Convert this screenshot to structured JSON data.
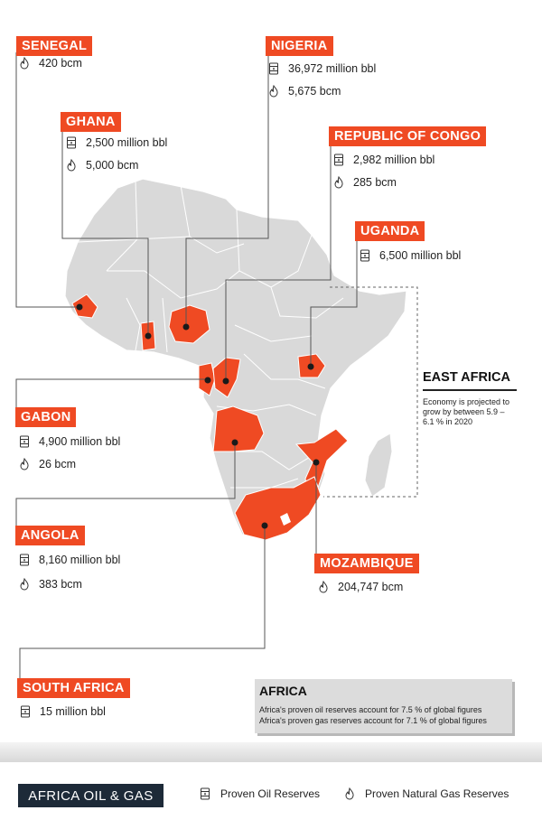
{
  "legend": {
    "brand": "AFRICA OIL & GAS",
    "oil_label": "Proven Oil Reserves",
    "gas_label": "Proven Natural Gas Reserves"
  },
  "countries": {
    "senegal": {
      "name": "SENEGAL",
      "gas": "420 bcm"
    },
    "nigeria": {
      "name": "NIGERIA",
      "oil": "36,972 million bbl",
      "gas": "5,675 bcm"
    },
    "ghana": {
      "name": "GHANA",
      "oil": "2,500 million bbl",
      "gas": "5,000 bcm"
    },
    "congo": {
      "name": "REPUBLIC OF CONGO",
      "oil": "2,982 million bbl",
      "gas": "285 bcm"
    },
    "uganda": {
      "name": "UGANDA",
      "oil": "6,500 million bbl"
    },
    "gabon": {
      "name": "GABON",
      "oil": "4,900 million bbl",
      "gas": "26 bcm"
    },
    "angola": {
      "name": "ANGOLA",
      "oil": "8,160 million bbl",
      "gas": "383 bcm"
    },
    "mozambique": {
      "name": "MOZAMBIQUE",
      "gas": "204,747 bcm"
    },
    "south_africa": {
      "name": "SOUTH AFRICA",
      "oil": "15 million bbl"
    }
  },
  "east_africa": {
    "title": "EAST AFRICA",
    "text": "Economy is projected to grow by between 5.9 – 6.1 % in 2020"
  },
  "africa_box": {
    "title": "AFRICA",
    "line1": "Africa's proven oil reserves account for 7.5 % of global figures",
    "line2": "Africa's proven gas reserves account for 7.1 % of global figures"
  },
  "colors": {
    "highlight": "#ef4a23",
    "land": "#d9d9d9",
    "brand_bg": "#1d2a38"
  }
}
